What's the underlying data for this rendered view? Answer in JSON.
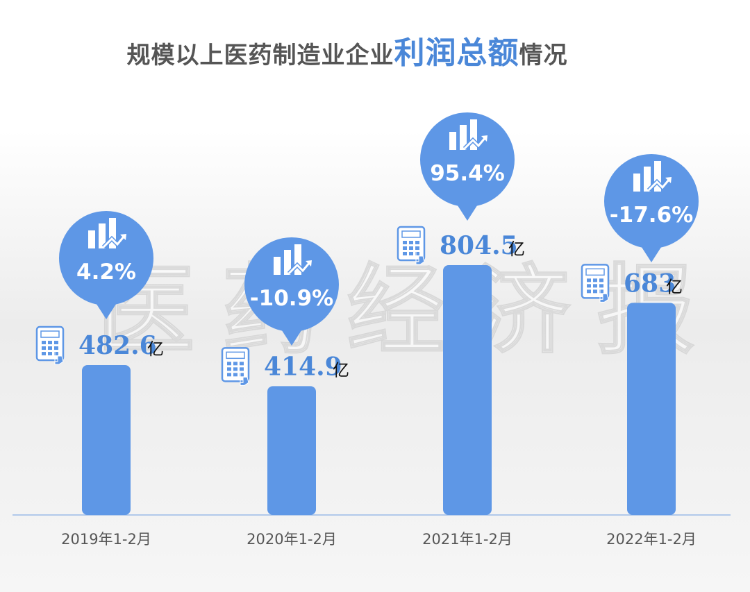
{
  "title": {
    "prefix": "规模以上医药制造业企业",
    "highlight": "利润总额",
    "suffix": "情况"
  },
  "watermark": [
    "医",
    "药",
    "经",
    "济",
    "报"
  ],
  "colors": {
    "bar": "#5e97e6",
    "bubble": "#5e97e6",
    "value": "#4a87d8",
    "axis": "#9bbbe8",
    "tick": "#555555"
  },
  "chart_data": {
    "type": "bar",
    "categories": [
      "2019年1-2月",
      "2020年1-2月",
      "2021年1-2月",
      "2022年1-2月"
    ],
    "values": [
      482.6,
      414.9,
      804.5,
      683
    ],
    "value_labels": [
      "482.6",
      "414.9",
      "804.5",
      "683"
    ],
    "unit": "亿",
    "growth": [
      "4.2%",
      "-10.9%",
      "95.4%",
      "-17.6%"
    ],
    "ylim": [
      0,
      1000
    ],
    "grid": false,
    "legend": "none",
    "icons": {
      "value": "calculator-icon",
      "growth": "bar-chart-up-icon"
    }
  }
}
